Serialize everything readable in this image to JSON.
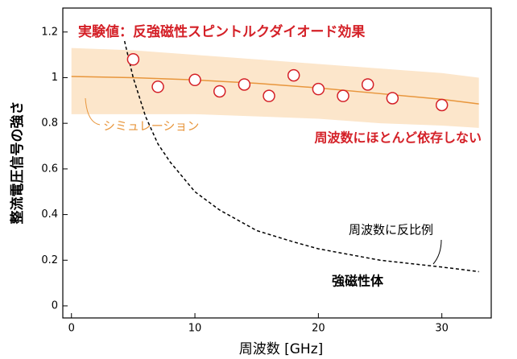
{
  "chart_data": {
    "type": "line",
    "x_label": "周波数 [GHz]",
    "y_label": "整流電圧信号の強さ",
    "xlim": [
      -0.7,
      34
    ],
    "ylim": [
      -0.053,
      1.305
    ],
    "xticks": [
      0,
      10,
      20,
      30
    ],
    "yticks": [
      0,
      0.2,
      0.4,
      0.6,
      0.8,
      1,
      1.2
    ],
    "series": [
      {
        "name": "実験値：反強磁性スピントルクダイオード効果",
        "color": "#d42027",
        "marker": "circle",
        "x": [
          5,
          7,
          10,
          12,
          14,
          16,
          18,
          20,
          22,
          24,
          26,
          30
        ],
        "values": [
          1.08,
          0.96,
          0.99,
          0.94,
          0.97,
          0.92,
          1.01,
          0.95,
          0.92,
          0.97,
          0.91,
          0.88
        ]
      },
      {
        "name": "シミュレーション",
        "color": "#e8963c",
        "band_color": "#fce6cb",
        "x": [
          0,
          5,
          10,
          15,
          20,
          25,
          30,
          33
        ],
        "values": [
          1.005,
          1.0,
          0.99,
          0.975,
          0.955,
          0.93,
          0.905,
          0.885
        ],
        "band_upper": [
          1.13,
          1.12,
          1.1,
          1.08,
          1.06,
          1.04,
          1.02,
          1.0
        ],
        "band_lower": [
          0.84,
          0.84,
          0.84,
          0.83,
          0.82,
          0.8,
          0.79,
          0.78
        ]
      },
      {
        "name": "強磁性体",
        "color": "#000000",
        "dash": true,
        "x": [
          4.3,
          5,
          6,
          7,
          8,
          10,
          12,
          15,
          18,
          20,
          25,
          30,
          33
        ],
        "values": [
          1.16,
          1.0,
          0.83,
          0.71,
          0.63,
          0.5,
          0.42,
          0.33,
          0.28,
          0.25,
          0.2,
          0.17,
          0.15
        ]
      }
    ],
    "annotations": [
      {
        "text": "周波数にほとんど依存しない",
        "color": "#d42027"
      },
      {
        "text": "周波数に反比例",
        "color": "#000000"
      }
    ]
  }
}
